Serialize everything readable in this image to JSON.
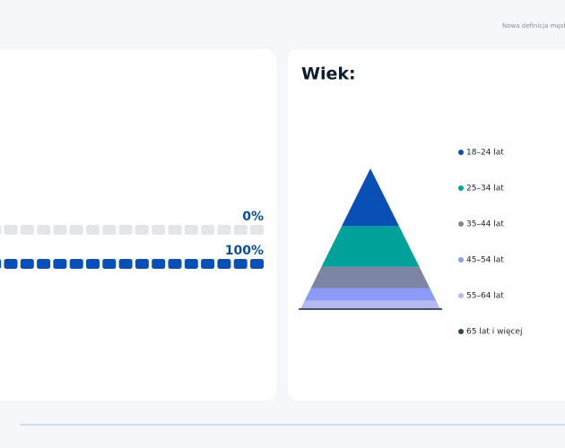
{
  "header": {
    "text": "Nowa definicja męskości"
  },
  "progress": {
    "rows": [
      {
        "label": "0%",
        "value": 0
      },
      {
        "label": "100%",
        "value": 100
      }
    ]
  },
  "age": {
    "title": "Wiek:",
    "groups": [
      {
        "name": "18–24 lat",
        "color": "#0a4fb5",
        "value": 41
      },
      {
        "name": "25–34 lat",
        "color": "#00a19a",
        "value": 29
      },
      {
        "name": "35–44 lat",
        "color": "#7e84a3",
        "value": 15
      },
      {
        "name": "45–54 lat",
        "color": "#8a9cf7",
        "value": 9
      },
      {
        "name": "55–64 lat",
        "color": "#b6b9ef",
        "value": 6
      },
      {
        "name": "65 lat i więcej",
        "color": "#2f4a3a",
        "value": 0
      }
    ]
  }
}
